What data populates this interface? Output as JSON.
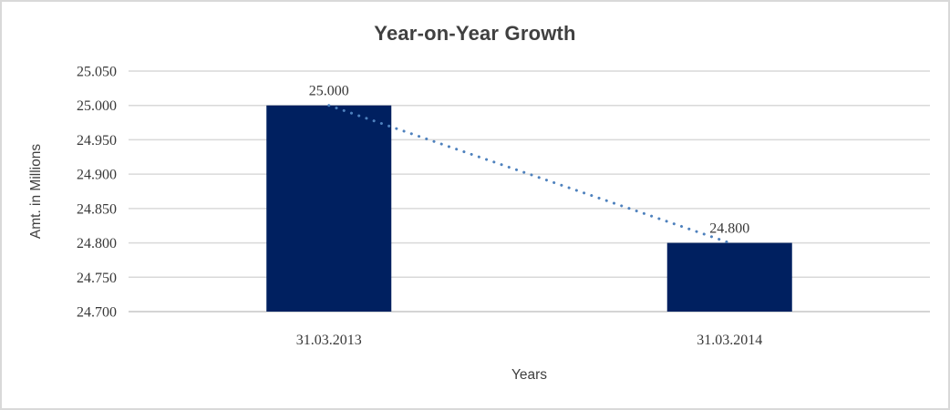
{
  "chart_data": {
    "type": "bar",
    "title": "Year-on-Year Growth",
    "xlabel": "Years",
    "ylabel": "Amt. in Millions",
    "categories": [
      "31.03.2013",
      "31.03.2014"
    ],
    "values": [
      25.0,
      24.8
    ],
    "data_labels": [
      "25.000",
      "24.800"
    ],
    "y_tick_labels": [
      "25.050",
      "25.000",
      "24.950",
      "24.900",
      "24.850",
      "24.800",
      "24.750",
      "24.700"
    ],
    "ylim": [
      24.7,
      25.05
    ],
    "grid": true,
    "legend": "none",
    "trendline": {
      "style": "dotted",
      "connects": "bar-top of 31.03.2013 to bar-top of 31.03.2014",
      "color": "#4e81bd"
    },
    "colors": {
      "bar": "#002060",
      "trend": "#4e81bd",
      "gridline": "#d9d9d9",
      "axis_line": "#c6c6c6",
      "number_text": "#383838",
      "title_text": "#404040",
      "border": "#d9d9d9",
      "background": "#ffffff"
    }
  }
}
